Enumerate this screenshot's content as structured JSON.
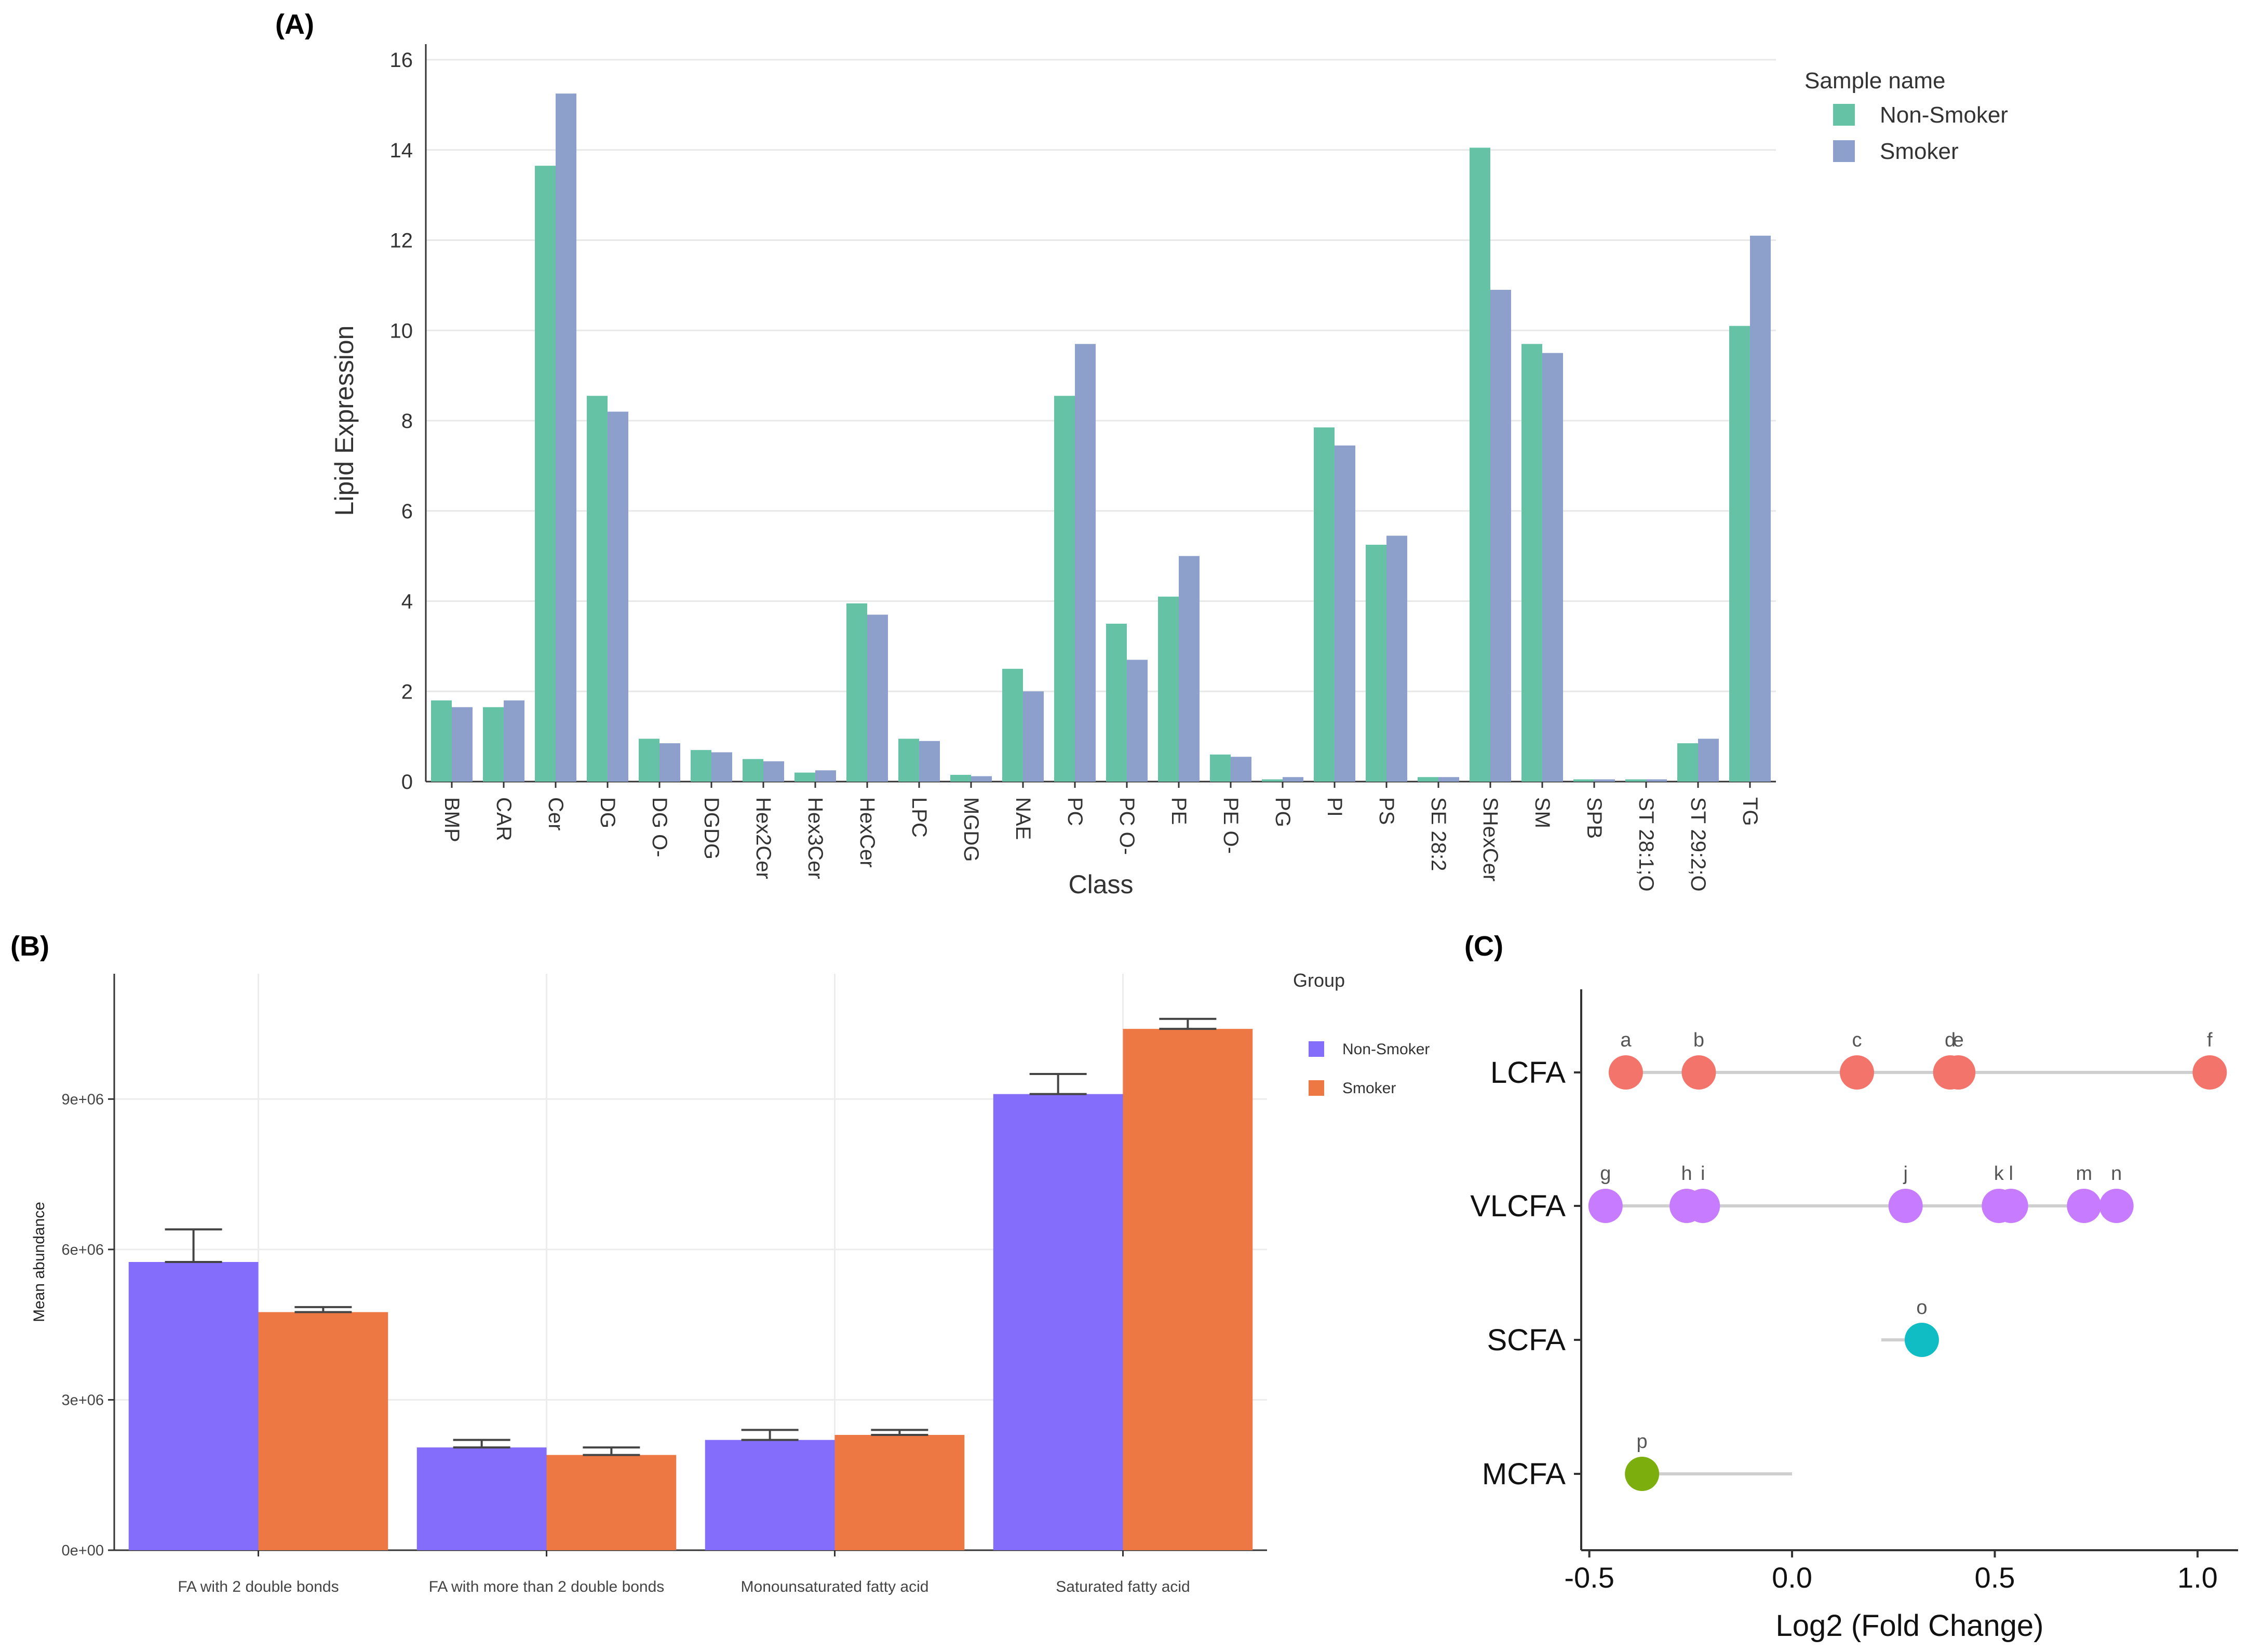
{
  "panels": {
    "a": "(A)",
    "b": "(B)",
    "c": "(C)"
  },
  "colors": {
    "a_non_smoker": "#66c2a5",
    "a_smoker": "#8da0cb",
    "b_non_smoker": "#836dfa",
    "b_smoker": "#ed7843",
    "c_lcfa": "#f2746b",
    "c_vlcfa": "#c77cff",
    "c_scfa": "#10bdc4",
    "c_mcfa": "#7caf0d"
  },
  "chart_data": [
    {
      "panel": "(A)",
      "type": "bar",
      "xlabel": "Class",
      "ylabel": "Lipid Expression",
      "ylim": [
        0,
        16
      ],
      "yticks": [
        0,
        2,
        4,
        6,
        8,
        10,
        12,
        14,
        16
      ],
      "grid": true,
      "legend_title": "Sample name",
      "legend_position": "top-right",
      "categories": [
        "BMP",
        "CAR",
        "Cer",
        "DG",
        "DG O-",
        "DGDG",
        "Hex2Cer",
        "Hex3Cer",
        "HexCer",
        "LPC",
        "MGDG",
        "NAE",
        "PC",
        "PC O-",
        "PE",
        "PE O-",
        "PG",
        "PI",
        "PS",
        "SE 28:2",
        "SHexCer",
        "SM",
        "SPB",
        "ST 28:1;O",
        "ST 29:2;O",
        "TG"
      ],
      "series": [
        {
          "name": "Non-Smoker",
          "values": [
            1.8,
            1.65,
            13.65,
            8.55,
            0.95,
            0.7,
            0.5,
            0.2,
            3.95,
            0.95,
            0.15,
            2.5,
            8.55,
            3.5,
            4.1,
            0.6,
            0.05,
            7.85,
            5.25,
            0.1,
            14.05,
            9.7,
            0.05,
            0.05,
            0.85,
            10.1
          ]
        },
        {
          "name": "Smoker",
          "values": [
            1.65,
            1.8,
            15.25,
            8.2,
            0.85,
            0.65,
            0.45,
            0.25,
            3.7,
            0.9,
            0.12,
            2.0,
            9.7,
            2.7,
            5.0,
            0.55,
            0.1,
            7.45,
            5.45,
            0.1,
            10.9,
            9.5,
            0.05,
            0.05,
            0.95,
            12.1
          ]
        }
      ]
    },
    {
      "panel": "(B)",
      "type": "bar",
      "xlabel": "",
      "ylabel": "Mean abundance",
      "ylim": [
        0,
        11500000
      ],
      "ytick_values": [
        0,
        3000000,
        6000000,
        9000000
      ],
      "ytick_labels": [
        "0e+00",
        "3e+06",
        "6e+06",
        "9e+06"
      ],
      "grid": true,
      "legend_title": "Group",
      "legend_position": "right",
      "categories": [
        "FA with 2 double bonds",
        "FA with more than 2 double bonds",
        "Monounsaturated fatty acid",
        "Saturated fatty acid"
      ],
      "series": [
        {
          "name": "Non-Smoker",
          "values": [
            5750000,
            2050000,
            2200000,
            9100000
          ],
          "error_upper": [
            6400000,
            2200000,
            2400000,
            9500000
          ]
        },
        {
          "name": "Smoker",
          "values": [
            4750000,
            1900000,
            2300000,
            10400000
          ],
          "error_upper": [
            4850000,
            2050000,
            2400000,
            10600000
          ]
        }
      ]
    },
    {
      "panel": "(C)",
      "type": "scatter",
      "xlabel": "Log2 (Fold Change)",
      "ylabel": "",
      "xlim": [
        -0.52,
        1.1
      ],
      "xticks": [
        -0.5,
        0.0,
        0.5,
        1.0
      ],
      "xtick_labels": [
        "-0.5",
        "0.0",
        "0.5",
        "1.0"
      ],
      "categories": [
        "LCFA",
        "VLCFA",
        "SCFA",
        "MCFA"
      ],
      "points": [
        {
          "category": "LCFA",
          "x": -0.41,
          "label": "a"
        },
        {
          "category": "LCFA",
          "x": -0.23,
          "label": "b"
        },
        {
          "category": "LCFA",
          "x": 0.16,
          "label": "c"
        },
        {
          "category": "LCFA",
          "x": 0.39,
          "label": "d"
        },
        {
          "category": "LCFA",
          "x": 0.41,
          "label": "e"
        },
        {
          "category": "LCFA",
          "x": 1.03,
          "label": "f"
        },
        {
          "category": "VLCFA",
          "x": -0.46,
          "label": "g"
        },
        {
          "category": "VLCFA",
          "x": -0.26,
          "label": "h"
        },
        {
          "category": "VLCFA",
          "x": -0.22,
          "label": "i"
        },
        {
          "category": "VLCFA",
          "x": 0.28,
          "label": "j"
        },
        {
          "category": "VLCFA",
          "x": 0.51,
          "label": "k"
        },
        {
          "category": "VLCFA",
          "x": 0.54,
          "label": "l"
        },
        {
          "category": "VLCFA",
          "x": 0.72,
          "label": "m"
        },
        {
          "category": "VLCFA",
          "x": 0.8,
          "label": "n"
        },
        {
          "category": "SCFA",
          "x": 0.32,
          "label": "o"
        },
        {
          "category": "MCFA",
          "x": -0.37,
          "label": "p"
        }
      ],
      "segments": [
        {
          "category": "LCFA",
          "from": -0.41,
          "to": 1.03
        },
        {
          "category": "VLCFA",
          "from": -0.46,
          "to": 0.8
        },
        {
          "category": "SCFA",
          "from": 0.22,
          "to": 0.32
        },
        {
          "category": "MCFA",
          "from": -0.37,
          "to": 0.0
        }
      ]
    }
  ]
}
